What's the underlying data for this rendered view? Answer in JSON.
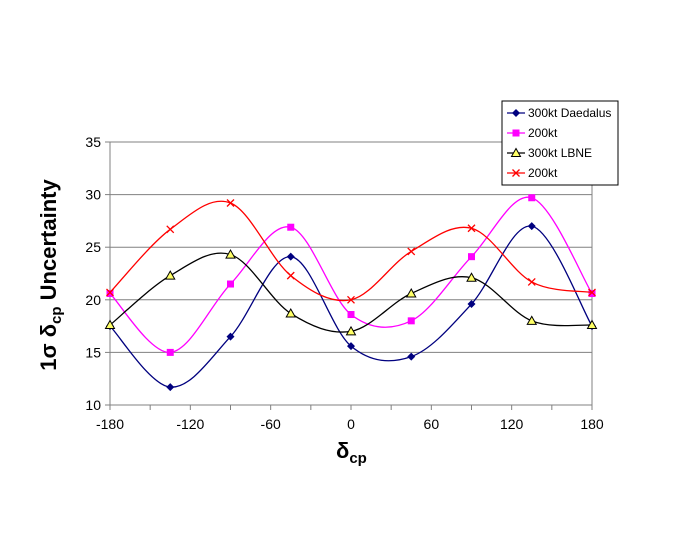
{
  "chart_data": {
    "type": "line",
    "title": "",
    "xlabel": {
      "main": "δ",
      "sub": "cp"
    },
    "ylabel": {
      "prefix": "1σ δ",
      "sub": "cp",
      "suffix": " Uncertainty"
    },
    "x": [
      -180,
      -135,
      -90,
      -45,
      0,
      45,
      90,
      135,
      180
    ],
    "xlim": [
      -180,
      180
    ],
    "ylim": [
      10,
      35
    ],
    "xticks": [
      -180,
      -120,
      -60,
      0,
      60,
      120,
      180
    ],
    "yticks": [
      10,
      15,
      20,
      25,
      30,
      35
    ],
    "grid": "horizontal",
    "legend_position": "top-right",
    "series": [
      {
        "name": "300kt Daedalus",
        "color": "#00007f",
        "marker": "diamond",
        "values": [
          17.5,
          11.7,
          16.5,
          24.1,
          15.6,
          14.6,
          19.6,
          27.0,
          17.5
        ]
      },
      {
        "name": "200kt",
        "color": "#ff00ff",
        "marker": "square",
        "values": [
          20.6,
          15.0,
          21.5,
          26.9,
          18.6,
          18.0,
          24.1,
          29.7,
          20.6
        ]
      },
      {
        "name": "300kt LBNE",
        "color": "#000000",
        "marker": "triangle",
        "values": [
          17.6,
          22.3,
          24.3,
          18.7,
          17.0,
          20.6,
          22.1,
          18.0,
          17.6
        ]
      },
      {
        "name": "200kt",
        "color": "#ff0000",
        "marker": "x",
        "values": [
          20.7,
          26.7,
          29.2,
          22.3,
          20.0,
          24.6,
          26.8,
          21.7,
          20.7
        ]
      }
    ]
  }
}
